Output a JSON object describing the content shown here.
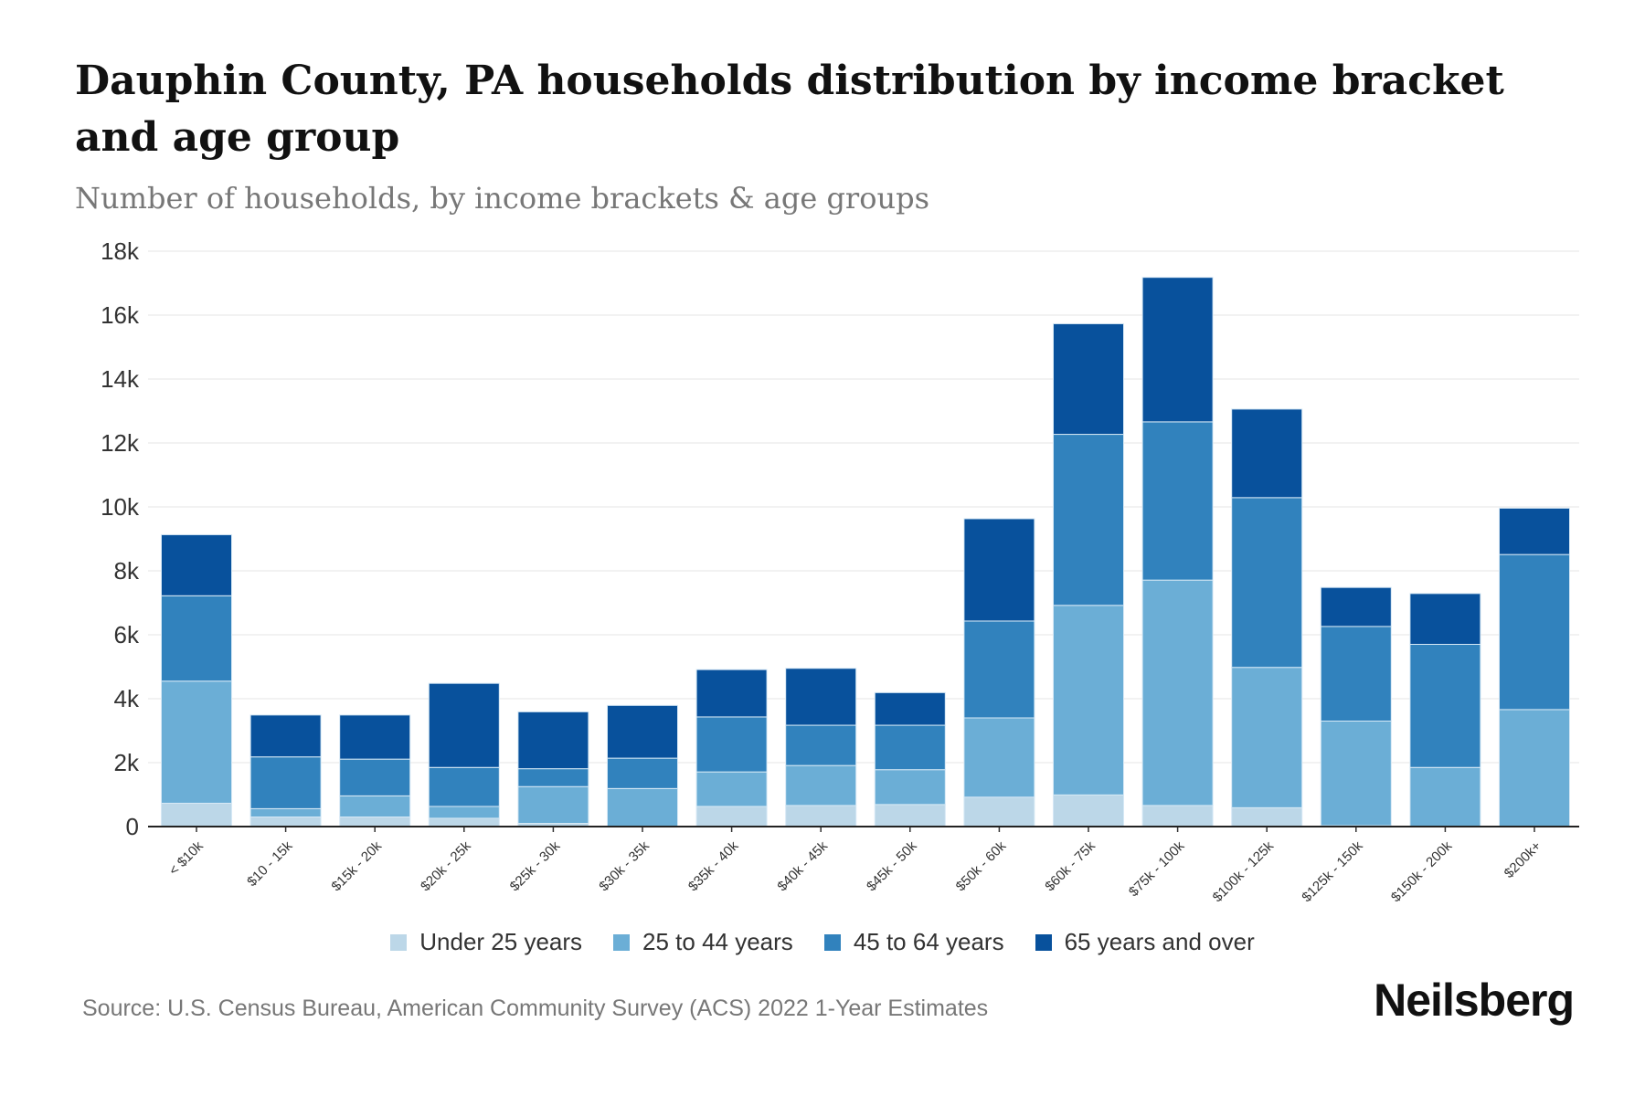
{
  "title": "Dauphin County, PA households distribution by income bracket and age group",
  "subtitle": "Number of households, by income brackets & age groups",
  "source": "Source: U.S. Census Bureau, American Community Survey (ACS) 2022 1-Year Estimates",
  "logo": "Neilsberg",
  "chart_data": {
    "type": "bar",
    "stacked": true,
    "title": "Dauphin County, PA households distribution by income bracket and age group",
    "xlabel": "",
    "ylabel": "Number of households",
    "ylim": [
      0,
      18000
    ],
    "yticks": [
      0,
      2000,
      4000,
      6000,
      8000,
      10000,
      12000,
      14000,
      16000,
      18000
    ],
    "ytick_labels": [
      "0",
      "2k",
      "4k",
      "6k",
      "8k",
      "10k",
      "12k",
      "14k",
      "16k",
      "18k"
    ],
    "grid": true,
    "legend_position": "bottom",
    "categories": [
      "< $10k",
      "$10 - 15k",
      "$15k - 20k",
      "$20k - 25k",
      "$25k - 30k",
      "$30k - 35k",
      "$35k - 40k",
      "$40k - 45k",
      "$45k - 50k",
      "$50k - 60k",
      "$60k - 75k",
      "$75k - 100k",
      "$100k - 125k",
      "$125k - 150k",
      "$150k - 200k",
      "$200k+"
    ],
    "series": [
      {
        "name": "Under 25 years",
        "color": "#bcd7e8",
        "values": [
          730,
          300,
          300,
          260,
          100,
          0,
          630,
          660,
          690,
          920,
          990,
          660,
          590,
          30,
          0,
          0
        ]
      },
      {
        "name": "25 to 44 years",
        "color": "#6baed6",
        "values": [
          3820,
          260,
          660,
          370,
          1150,
          1190,
          1080,
          1250,
          1090,
          2480,
          5930,
          7050,
          4390,
          3270,
          1850,
          3660
        ]
      },
      {
        "name": "45 to 64 years",
        "color": "#3182bd",
        "values": [
          2670,
          1620,
          1150,
          1220,
          560,
          950,
          1720,
          1260,
          1390,
          3030,
          5350,
          4950,
          5310,
          2960,
          3850,
          4850
        ]
      },
      {
        "name": "65 years and over",
        "color": "#08519c",
        "values": [
          1910,
          1310,
          1380,
          2630,
          1780,
          1650,
          1480,
          1780,
          1020,
          3200,
          3460,
          4520,
          2770,
          1220,
          1590,
          1450
        ]
      }
    ]
  }
}
